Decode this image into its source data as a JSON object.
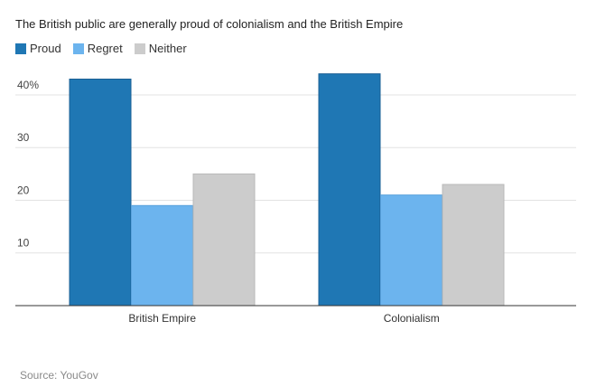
{
  "chart_data": {
    "type": "bar",
    "title": "The British public are generally proud of colonialism and the British Empire",
    "categories": [
      "British Empire",
      "Colonialism"
    ],
    "series": [
      {
        "name": "Proud",
        "values": [
          43,
          44
        ],
        "color": "#1f77b4"
      },
      {
        "name": "Regret",
        "values": [
          19,
          21
        ],
        "color": "#6cb4ee"
      },
      {
        "name": "Neither",
        "values": [
          25,
          23
        ],
        "color": "#cccccc"
      }
    ],
    "ylim": [
      0,
      46
    ],
    "yticks": [
      10,
      20,
      30,
      40
    ],
    "ytick_labels": [
      "10",
      "20",
      "30",
      "40%"
    ],
    "grid": true,
    "legend_position": "top-left",
    "xlabel": "",
    "ylabel": ""
  },
  "source": "Source: YouGov"
}
